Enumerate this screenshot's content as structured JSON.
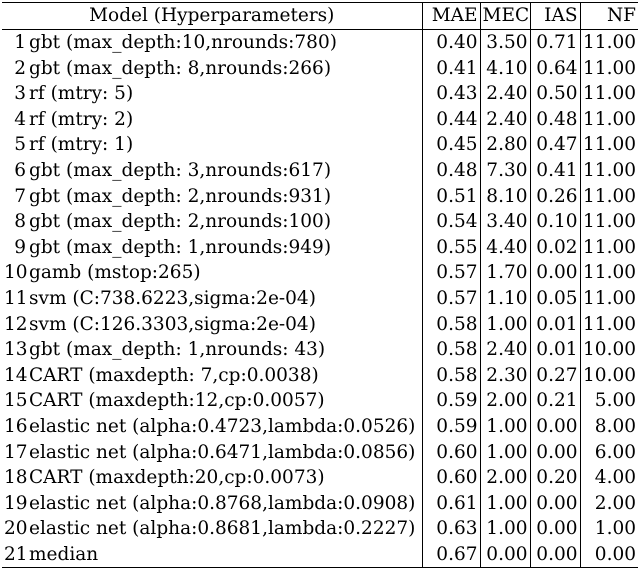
{
  "headers": {
    "model": "Model (Hyperparameters)",
    "mae": "MAE",
    "mec": "MEC",
    "ias": "IAS",
    "nf": "NF"
  },
  "rows": [
    {
      "rank": "1",
      "model": "gbt (max_depth:10,nrounds:780)",
      "mae": "0.40",
      "mec": "3.50",
      "ias": "0.71",
      "nf": "11.00"
    },
    {
      "rank": "2",
      "model": "gbt (max_depth: 8,nrounds:266)",
      "mae": "0.41",
      "mec": "4.10",
      "ias": "0.64",
      "nf": "11.00"
    },
    {
      "rank": "3",
      "model": "rf (mtry: 5)",
      "mae": "0.43",
      "mec": "2.40",
      "ias": "0.50",
      "nf": "11.00"
    },
    {
      "rank": "4",
      "model": "rf (mtry: 2)",
      "mae": "0.44",
      "mec": "2.40",
      "ias": "0.48",
      "nf": "11.00"
    },
    {
      "rank": "5",
      "model": "rf (mtry: 1)",
      "mae": "0.45",
      "mec": "2.80",
      "ias": "0.47",
      "nf": "11.00"
    },
    {
      "rank": "6",
      "model": "gbt (max_depth: 3,nrounds:617)",
      "mae": "0.48",
      "mec": "7.30",
      "ias": "0.41",
      "nf": "11.00"
    },
    {
      "rank": "7",
      "model": "gbt (max_depth: 2,nrounds:931)",
      "mae": "0.51",
      "mec": "8.10",
      "ias": "0.26",
      "nf": "11.00"
    },
    {
      "rank": "8",
      "model": "gbt (max_depth: 2,nrounds:100)",
      "mae": "0.54",
      "mec": "3.40",
      "ias": "0.10",
      "nf": "11.00"
    },
    {
      "rank": "9",
      "model": "gbt (max_depth: 1,nrounds:949)",
      "mae": "0.55",
      "mec": "4.40",
      "ias": "0.02",
      "nf": "11.00"
    },
    {
      "rank": "10",
      "model": "gamb (mstop:265)",
      "mae": "0.57",
      "mec": "1.70",
      "ias": "0.00",
      "nf": "11.00"
    },
    {
      "rank": "11",
      "model": "svm (C:738.6223,sigma:2e-04)",
      "mae": "0.57",
      "mec": "1.10",
      "ias": "0.05",
      "nf": "11.00"
    },
    {
      "rank": "12",
      "model": "svm (C:126.3303,sigma:2e-04)",
      "mae": "0.58",
      "mec": "1.00",
      "ias": "0.01",
      "nf": "11.00"
    },
    {
      "rank": "13",
      "model": "gbt (max_depth: 1,nrounds: 43)",
      "mae": "0.58",
      "mec": "2.40",
      "ias": "0.01",
      "nf": "10.00"
    },
    {
      "rank": "14",
      "model": "CART (maxdepth: 7,cp:0.0038)",
      "mae": "0.58",
      "mec": "2.30",
      "ias": "0.27",
      "nf": "10.00"
    },
    {
      "rank": "15",
      "model": "CART (maxdepth:12,cp:0.0057)",
      "mae": "0.59",
      "mec": "2.00",
      "ias": "0.21",
      "nf": "5.00"
    },
    {
      "rank": "16",
      "model": "elastic net (alpha:0.4723,lambda:0.0526)",
      "mae": "0.59",
      "mec": "1.00",
      "ias": "0.00",
      "nf": "8.00"
    },
    {
      "rank": "17",
      "model": "elastic net (alpha:0.6471,lambda:0.0856)",
      "mae": "0.60",
      "mec": "1.00",
      "ias": "0.00",
      "nf": "6.00"
    },
    {
      "rank": "18",
      "model": "CART (maxdepth:20,cp:0.0073)",
      "mae": "0.60",
      "mec": "2.00",
      "ias": "0.20",
      "nf": "4.00"
    },
    {
      "rank": "19",
      "model": "elastic net (alpha:0.8768,lambda:0.0908)",
      "mae": "0.61",
      "mec": "1.00",
      "ias": "0.00",
      "nf": "2.00"
    },
    {
      "rank": "20",
      "model": "elastic net (alpha:0.8681,lambda:0.2227)",
      "mae": "0.63",
      "mec": "1.00",
      "ias": "0.00",
      "nf": "1.00"
    },
    {
      "rank": "21",
      "model": "median",
      "mae": "0.67",
      "mec": "0.00",
      "ias": "0.00",
      "nf": "0.00"
    }
  ]
}
